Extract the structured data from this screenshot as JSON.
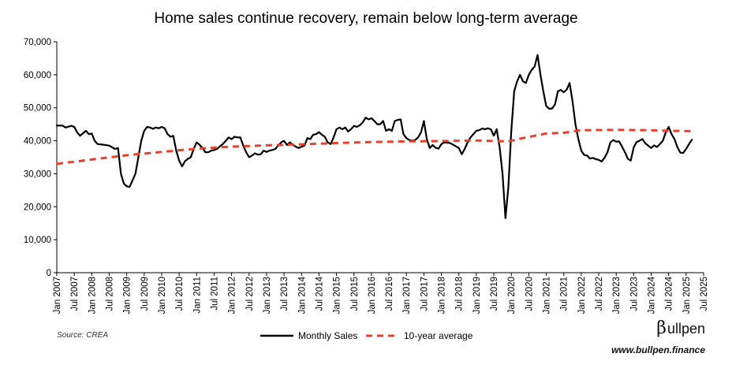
{
  "chart_data": {
    "type": "line",
    "title": "Home sales continue recovery, remain below long-term average",
    "xlabel": "",
    "ylabel": "",
    "ylim": [
      0,
      70000
    ],
    "yticks": [
      "0",
      "10,000",
      "20,000",
      "30,000",
      "40,000",
      "50,000",
      "60,000",
      "70,000"
    ],
    "grid": false,
    "legend_position": "bottom-center",
    "x_tick_labels": [
      "Jan 2007",
      "Jul 2007",
      "Jan 2008",
      "Jul 2008",
      "Jan 2009",
      "Jul 2009",
      "Jan 2010",
      "Jul 2010",
      "Jan 2011",
      "Jul 2011",
      "Jan 2012",
      "Jul 2012",
      "Jan 2013",
      "Jul 2013",
      "Jan 2014",
      "Jul 2014",
      "Jan 2015",
      "Jul 2015",
      "Jan 2016",
      "Jul 2016",
      "Jan 2017",
      "Jul 2017",
      "Jan 2018",
      "Jul 2018",
      "Jan 2019",
      "Jul 2019",
      "Jan 2020",
      "Jul 2020",
      "Jan 2021",
      "Jul 2021",
      "Jan 2022",
      "Jul 2022",
      "Jan 2023",
      "Jul 2023",
      "Jan 2024",
      "Jul 2024",
      "Jan 2025",
      "Jul 2025"
    ],
    "series": [
      {
        "name": "Monthly Sales",
        "color": "#000000",
        "style": "solid",
        "points": [
          [
            0,
            44600
          ],
          [
            2,
            44600
          ],
          [
            3,
            44000
          ],
          [
            5,
            44500
          ],
          [
            6,
            44200
          ],
          [
            7,
            42500
          ],
          [
            8,
            41500
          ],
          [
            10,
            43000
          ],
          [
            11,
            42000
          ],
          [
            12,
            42200
          ],
          [
            13,
            40000
          ],
          [
            14,
            39000
          ],
          [
            16,
            38800
          ],
          [
            18,
            38500
          ],
          [
            19,
            38000
          ],
          [
            20,
            37500
          ],
          [
            21,
            37800
          ],
          [
            22,
            30000
          ],
          [
            23,
            27000
          ],
          [
            24,
            26200
          ],
          [
            25,
            26000
          ],
          [
            26,
            28000
          ],
          [
            27,
            30000
          ],
          [
            28,
            35000
          ],
          [
            29,
            40000
          ],
          [
            30,
            43000
          ],
          [
            31,
            44200
          ],
          [
            32,
            44000
          ],
          [
            33,
            43600
          ],
          [
            34,
            44000
          ],
          [
            35,
            43800
          ],
          [
            36,
            44200
          ],
          [
            37,
            43800
          ],
          [
            38,
            42000
          ],
          [
            39,
            41200
          ],
          [
            40,
            41500
          ],
          [
            41,
            37000
          ],
          [
            42,
            34000
          ],
          [
            43,
            32200
          ],
          [
            44,
            33800
          ],
          [
            45,
            34500
          ],
          [
            46,
            35000
          ],
          [
            47,
            37500
          ],
          [
            48,
            39500
          ],
          [
            49,
            38800
          ],
          [
            50,
            37800
          ],
          [
            51,
            36500
          ],
          [
            52,
            36500
          ],
          [
            53,
            37000
          ],
          [
            54,
            37200
          ],
          [
            55,
            37500
          ],
          [
            56,
            38300
          ],
          [
            57,
            39000
          ],
          [
            58,
            40000
          ],
          [
            59,
            41000
          ],
          [
            60,
            40500
          ],
          [
            61,
            41200
          ],
          [
            62,
            41000
          ],
          [
            63,
            41000
          ],
          [
            64,
            38500
          ],
          [
            65,
            36500
          ],
          [
            66,
            35000
          ],
          [
            67,
            35500
          ],
          [
            68,
            36200
          ],
          [
            69,
            35800
          ],
          [
            70,
            35900
          ],
          [
            71,
            37000
          ],
          [
            72,
            36600
          ],
          [
            73,
            37000
          ],
          [
            74,
            37200
          ],
          [
            75,
            37500
          ],
          [
            76,
            38500
          ],
          [
            77,
            39500
          ],
          [
            78,
            40000
          ],
          [
            79,
            38700
          ],
          [
            80,
            39500
          ],
          [
            81,
            38800
          ],
          [
            82,
            38200
          ],
          [
            83,
            37800
          ],
          [
            84,
            38200
          ],
          [
            85,
            38500
          ],
          [
            86,
            40800
          ],
          [
            87,
            40500
          ],
          [
            88,
            41800
          ],
          [
            89,
            42000
          ],
          [
            90,
            42600
          ],
          [
            91,
            41800
          ],
          [
            92,
            41200
          ],
          [
            93,
            39500
          ],
          [
            94,
            39000
          ],
          [
            95,
            41000
          ],
          [
            96,
            43500
          ],
          [
            97,
            44000
          ],
          [
            98,
            43500
          ],
          [
            99,
            44000
          ],
          [
            100,
            42800
          ],
          [
            101,
            43500
          ],
          [
            102,
            44500
          ],
          [
            103,
            44200
          ],
          [
            104,
            44700
          ],
          [
            105,
            45500
          ],
          [
            106,
            47000
          ],
          [
            107,
            46500
          ],
          [
            108,
            46800
          ],
          [
            109,
            46000
          ],
          [
            110,
            45000
          ],
          [
            111,
            45000
          ],
          [
            112,
            46000
          ],
          [
            113,
            43000
          ],
          [
            114,
            43500
          ],
          [
            115,
            43000
          ],
          [
            116,
            46000
          ],
          [
            117,
            46300
          ],
          [
            118,
            46500
          ],
          [
            119,
            42000
          ],
          [
            120,
            40800
          ],
          [
            121,
            40200
          ],
          [
            122,
            40000
          ],
          [
            123,
            40200
          ],
          [
            124,
            41000
          ],
          [
            125,
            42500
          ],
          [
            126,
            46000
          ],
          [
            127,
            40500
          ],
          [
            128,
            37800
          ],
          [
            129,
            38700
          ],
          [
            130,
            37900
          ],
          [
            131,
            37600
          ],
          [
            132,
            39000
          ],
          [
            133,
            39500
          ],
          [
            134,
            39400
          ],
          [
            135,
            39300
          ],
          [
            136,
            38800
          ],
          [
            137,
            38300
          ],
          [
            138,
            37800
          ],
          [
            139,
            35900
          ],
          [
            140,
            37500
          ],
          [
            141,
            39500
          ],
          [
            142,
            41000
          ],
          [
            143,
            42000
          ],
          [
            144,
            43000
          ],
          [
            145,
            43200
          ],
          [
            146,
            43700
          ],
          [
            147,
            43500
          ],
          [
            148,
            43800
          ],
          [
            149,
            43400
          ],
          [
            150,
            41500
          ],
          [
            151,
            43500
          ],
          [
            152,
            38000
          ],
          [
            153,
            30000
          ],
          [
            154,
            16500
          ],
          [
            155,
            26000
          ],
          [
            156,
            43000
          ],
          [
            157,
            55000
          ],
          [
            158,
            58000
          ],
          [
            159,
            60000
          ],
          [
            160,
            58000
          ],
          [
            161,
            57500
          ],
          [
            162,
            60000
          ],
          [
            163,
            61500
          ],
          [
            164,
            62500
          ],
          [
            165,
            66000
          ],
          [
            166,
            60000
          ],
          [
            167,
            55000
          ],
          [
            168,
            50500
          ],
          [
            169,
            49700
          ],
          [
            170,
            49800
          ],
          [
            171,
            51000
          ],
          [
            172,
            55000
          ],
          [
            173,
            55400
          ],
          [
            174,
            54700
          ],
          [
            175,
            55500
          ],
          [
            176,
            57500
          ],
          [
            177,
            52000
          ],
          [
            178,
            45000
          ],
          [
            179,
            40500
          ],
          [
            180,
            37000
          ],
          [
            181,
            35700
          ],
          [
            182,
            35500
          ],
          [
            183,
            34600
          ],
          [
            184,
            34800
          ],
          [
            185,
            34400
          ],
          [
            186,
            34200
          ],
          [
            187,
            33700
          ],
          [
            188,
            34800
          ],
          [
            189,
            36500
          ],
          [
            190,
            39500
          ],
          [
            191,
            40200
          ],
          [
            192,
            39700
          ],
          [
            193,
            39800
          ],
          [
            194,
            38200
          ],
          [
            195,
            36500
          ],
          [
            196,
            34500
          ],
          [
            197,
            34000
          ],
          [
            198,
            38000
          ],
          [
            199,
            39600
          ],
          [
            200,
            40000
          ],
          [
            201,
            40500
          ],
          [
            202,
            39200
          ],
          [
            203,
            38500
          ],
          [
            204,
            37800
          ],
          [
            205,
            38600
          ],
          [
            206,
            38100
          ],
          [
            207,
            39000
          ],
          [
            208,
            40000
          ],
          [
            209,
            42500
          ],
          [
            210,
            44200
          ],
          [
            211,
            42000
          ],
          [
            212,
            40500
          ],
          [
            213,
            38000
          ],
          [
            214,
            36400
          ],
          [
            215,
            36300
          ],
          [
            216,
            37500
          ],
          [
            217,
            39000
          ],
          [
            218,
            40300
          ]
        ]
      },
      {
        "name": "10-year average",
        "color": "#e8402a",
        "style": "dashed",
        "points": [
          [
            0,
            33000
          ],
          [
            12,
            34300
          ],
          [
            24,
            35600
          ],
          [
            36,
            36600
          ],
          [
            48,
            37600
          ],
          [
            60,
            38200
          ],
          [
            72,
            38600
          ],
          [
            84,
            38900
          ],
          [
            96,
            39300
          ],
          [
            108,
            39600
          ],
          [
            120,
            39800
          ],
          [
            132,
            39900
          ],
          [
            144,
            40100
          ],
          [
            155,
            39800
          ],
          [
            160,
            40800
          ],
          [
            168,
            42200
          ],
          [
            174,
            42400
          ],
          [
            180,
            43200
          ],
          [
            192,
            43300
          ],
          [
            204,
            43200
          ],
          [
            210,
            43000
          ],
          [
            218,
            42900
          ]
        ]
      }
    ]
  },
  "footer": {
    "source": "Source: CREA",
    "brand_beta": "β",
    "brand_name": "ullpen",
    "url": "www.bullpen.finance"
  }
}
